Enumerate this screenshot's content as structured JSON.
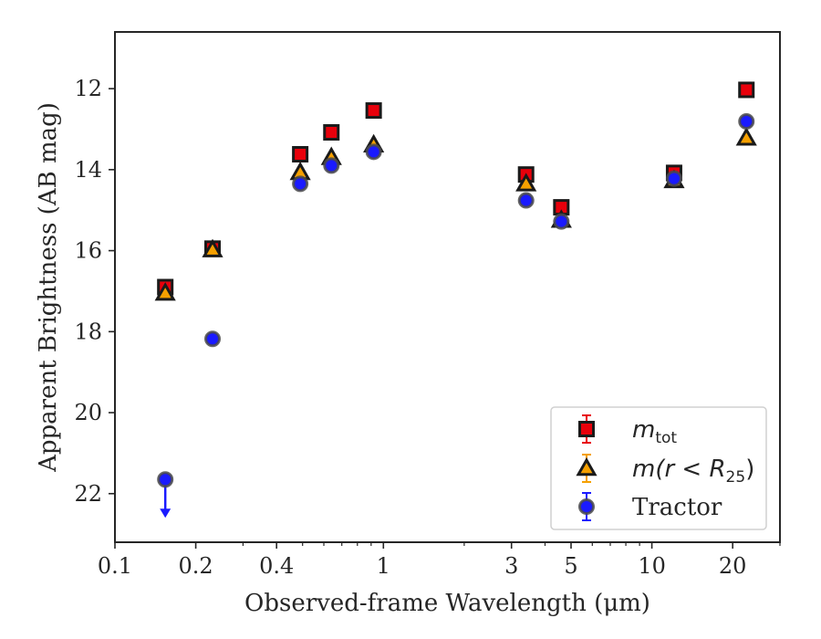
{
  "chart_data": {
    "type": "scatter",
    "title": "",
    "xlabel": "Observed-frame Wavelength (μm)",
    "ylabel": "Apparent Brightness (AB mag)",
    "xscale": "log",
    "xlim": [
      0.1,
      30
    ],
    "ylim": [
      23.2,
      10.6
    ],
    "y_inverted": true,
    "grid": false,
    "legend_position": "lower-right",
    "x_ticks": [
      {
        "value": 0.1,
        "label": "0.1"
      },
      {
        "value": 0.2,
        "label": "0.2"
      },
      {
        "value": 0.4,
        "label": "0.4"
      },
      {
        "value": 1,
        "label": "1"
      },
      {
        "value": 3,
        "label": "3"
      },
      {
        "value": 5,
        "label": "5"
      },
      {
        "value": 10,
        "label": "10"
      },
      {
        "value": 20,
        "label": "20"
      }
    ],
    "y_ticks": [
      {
        "value": 12,
        "label": "12"
      },
      {
        "value": 14,
        "label": "14"
      },
      {
        "value": 16,
        "label": "16"
      },
      {
        "value": 18,
        "label": "18"
      },
      {
        "value": 20,
        "label": "20"
      },
      {
        "value": 22,
        "label": "22"
      }
    ],
    "series": [
      {
        "name": "m_tot",
        "legend_main": "m",
        "legend_sub": "tot",
        "marker": "square",
        "color": "#e8000b",
        "edge": "#1a1a1a",
        "points": [
          {
            "x": 0.154,
            "y": 16.9
          },
          {
            "x": 0.231,
            "y": 15.95
          },
          {
            "x": 0.49,
            "y": 13.62
          },
          {
            "x": 0.64,
            "y": 13.08
          },
          {
            "x": 0.92,
            "y": 12.54
          },
          {
            "x": 3.4,
            "y": 14.12
          },
          {
            "x": 4.6,
            "y": 14.93
          },
          {
            "x": 12.1,
            "y": 14.08
          },
          {
            "x": 22.5,
            "y": 12.03
          }
        ]
      },
      {
        "name": "m(r < R25)",
        "legend_main": "m(r < R",
        "legend_sub": "25",
        "legend_tail": ")",
        "marker": "triangle",
        "color": "#f5a000",
        "edge": "#1a1a1a",
        "points": [
          {
            "x": 0.154,
            "y": 17.05
          },
          {
            "x": 0.231,
            "y": 15.98
          },
          {
            "x": 0.49,
            "y": 14.07
          },
          {
            "x": 0.64,
            "y": 13.7
          },
          {
            "x": 0.92,
            "y": 13.39
          },
          {
            "x": 3.4,
            "y": 14.35
          },
          {
            "x": 4.6,
            "y": 15.25
          },
          {
            "x": 12.1,
            "y": 14.27
          },
          {
            "x": 22.5,
            "y": 13.22
          }
        ]
      },
      {
        "name": "Tractor",
        "marker": "circle",
        "color": "#1a1aff",
        "edge": "#4a4a4a",
        "points": [
          {
            "x": 0.154,
            "y": 21.65,
            "upper_limit": true
          },
          {
            "x": 0.231,
            "y": 18.18
          },
          {
            "x": 0.49,
            "y": 14.35
          },
          {
            "x": 0.64,
            "y": 13.9
          },
          {
            "x": 0.92,
            "y": 13.56
          },
          {
            "x": 3.4,
            "y": 14.76
          },
          {
            "x": 4.6,
            "y": 15.28
          },
          {
            "x": 12.1,
            "y": 14.22
          },
          {
            "x": 22.5,
            "y": 12.81
          }
        ]
      }
    ]
  }
}
